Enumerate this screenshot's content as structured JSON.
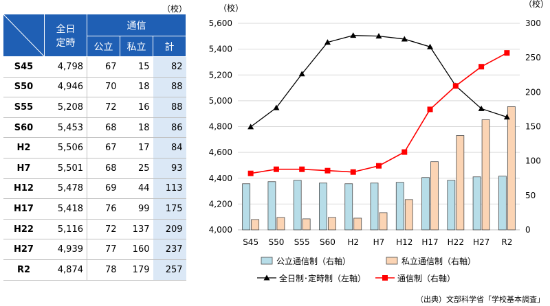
{
  "table": {
    "unit": "（校）",
    "headers": {
      "zennichi": [
        "全日",
        "定時"
      ],
      "tsushin": "通信",
      "koritsu": "公立",
      "shiritsu": "私立",
      "kei": "計"
    },
    "rows": [
      {
        "era": "S45",
        "zen": "4,798",
        "ko": "67",
        "shi": "15",
        "kei": "82"
      },
      {
        "era": "S50",
        "zen": "4,946",
        "ko": "70",
        "shi": "18",
        "kei": "88"
      },
      {
        "era": "S55",
        "zen": "5,208",
        "ko": "72",
        "shi": "16",
        "kei": "88"
      },
      {
        "era": "S60",
        "zen": "5,453",
        "ko": "68",
        "shi": "18",
        "kei": "86"
      },
      {
        "era": "H2",
        "zen": "5,506",
        "ko": "67",
        "shi": "17",
        "kei": "84"
      },
      {
        "era": "H7",
        "zen": "5,501",
        "ko": "68",
        "shi": "25",
        "kei": "93"
      },
      {
        "era": "H12",
        "zen": "5,478",
        "ko": "69",
        "shi": "44",
        "kei": "113"
      },
      {
        "era": "H17",
        "zen": "5,418",
        "ko": "76",
        "shi": "99",
        "kei": "175"
      },
      {
        "era": "H22",
        "zen": "5,116",
        "ko": "72",
        "shi": "137",
        "kei": "209"
      },
      {
        "era": "H27",
        "zen": "4,939",
        "ko": "77",
        "shi": "160",
        "kei": "237"
      },
      {
        "era": "R2",
        "zen": "4,874",
        "ko": "78",
        "shi": "179",
        "kei": "257"
      }
    ]
  },
  "source": "（出典）文部科学省「学校基本調査」",
  "colors": {
    "header_blue": "#1f5fb4",
    "public_bar": "#b7dde8",
    "private_bar": "#fbd4b4",
    "line_total": "#ff0000",
    "line_fulltime": "#000000"
  },
  "chart_data": {
    "type": "bar+line",
    "categories": [
      "S45",
      "S50",
      "S55",
      "S60",
      "H2",
      "H7",
      "H12",
      "H17",
      "H22",
      "H27",
      "R2"
    ],
    "left_axis": {
      "unit": "（校）",
      "ylim": [
        4000,
        5600
      ],
      "ticks": [
        "4,000",
        "4,200",
        "4,400",
        "4,600",
        "4,800",
        "5,000",
        "5,200",
        "5,400",
        "5,600"
      ]
    },
    "right_axis": {
      "unit": "（校）",
      "ylim": [
        0,
        300
      ],
      "ticks": [
        "0",
        "50",
        "100",
        "150",
        "200",
        "250",
        "300"
      ]
    },
    "series": [
      {
        "name": "公立通信制（右軸）",
        "kind": "bar",
        "axis": "right",
        "values": [
          67,
          70,
          72,
          68,
          67,
          68,
          69,
          76,
          72,
          77,
          78
        ]
      },
      {
        "name": "私立通信制（右軸）",
        "kind": "bar",
        "axis": "right",
        "values": [
          15,
          18,
          16,
          18,
          17,
          25,
          44,
          99,
          137,
          160,
          179
        ]
      },
      {
        "name": "全日制･定時制（左軸）",
        "kind": "line",
        "marker": "triangle",
        "axis": "left",
        "values": [
          4798,
          4946,
          5208,
          5453,
          5506,
          5501,
          5478,
          5418,
          5116,
          4939,
          4874
        ]
      },
      {
        "name": "通信制（右軸）",
        "kind": "line",
        "marker": "square",
        "axis": "right",
        "values": [
          82,
          88,
          88,
          86,
          84,
          93,
          113,
          175,
          209,
          237,
          257
        ]
      }
    ],
    "legend": "bottom",
    "grid": true
  }
}
